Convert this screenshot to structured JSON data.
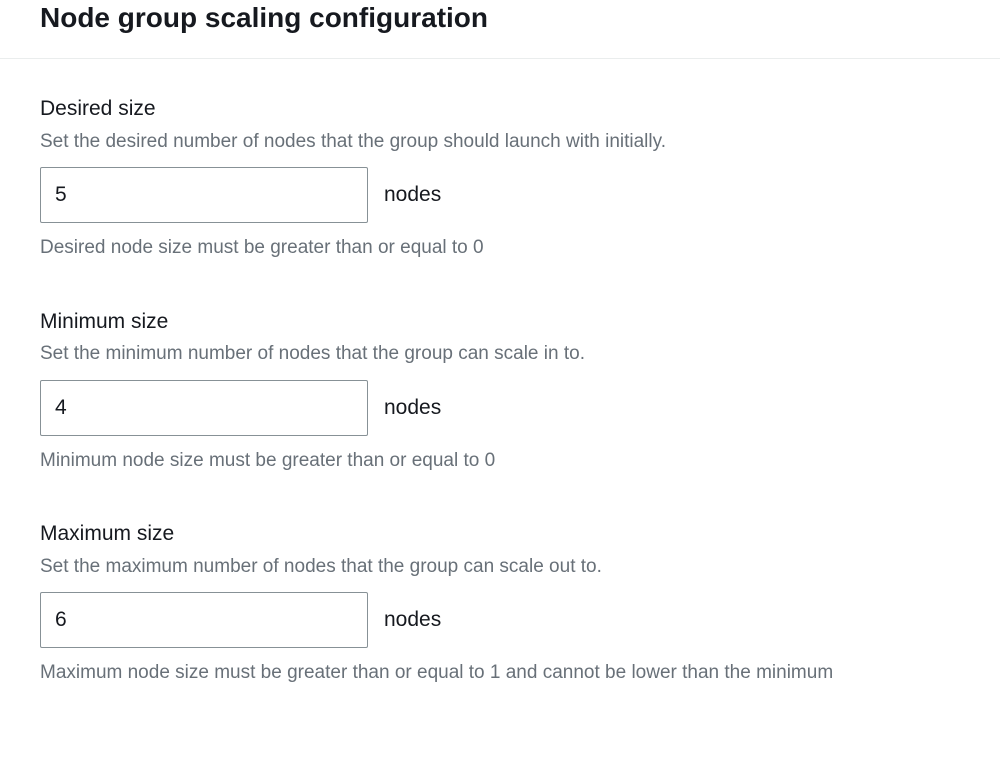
{
  "header": {
    "title": "Node group scaling configuration"
  },
  "fields": {
    "desired": {
      "label": "Desired size",
      "description": "Set the desired number of nodes that the group should launch with initially.",
      "value": "5",
      "unit": "nodes",
      "constraint": "Desired node size must be greater than or equal to 0"
    },
    "minimum": {
      "label": "Minimum size",
      "description": "Set the minimum number of nodes that the group can scale in to.",
      "value": "4",
      "unit": "nodes",
      "constraint": "Minimum node size must be greater than or equal to 0"
    },
    "maximum": {
      "label": "Maximum size",
      "description": "Set the maximum number of nodes that the group can scale out to.",
      "value": "6",
      "unit": "nodes",
      "constraint": "Maximum node size must be greater than or equal to 1 and cannot be lower than the minimum"
    }
  },
  "colors": {
    "text_primary": "#16191f",
    "text_secondary": "#687078",
    "border_input": "#879196",
    "border_divider": "#eaeded",
    "background": "#ffffff"
  }
}
